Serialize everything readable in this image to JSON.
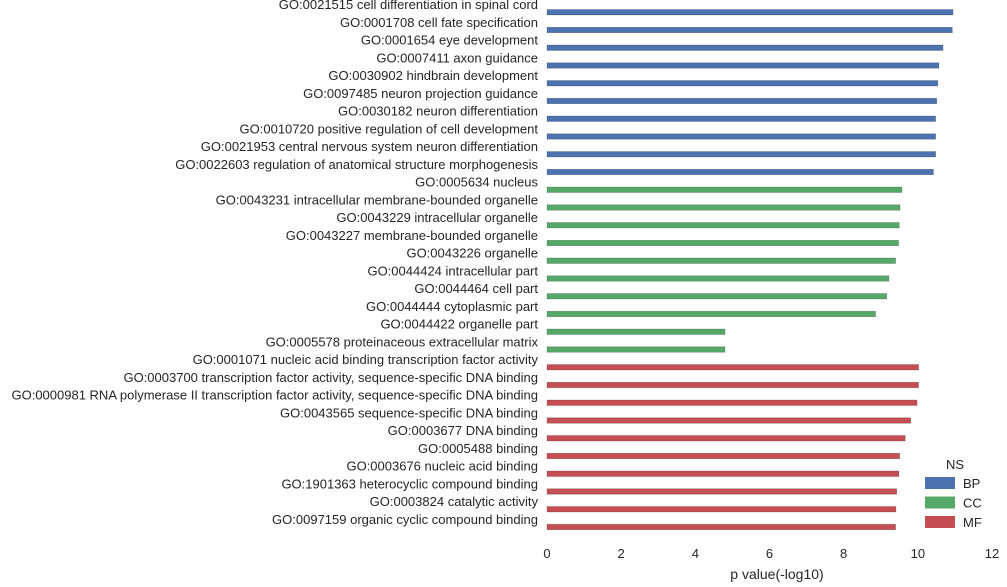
{
  "chart_data": {
    "type": "bar",
    "orientation": "horizontal",
    "categories": [
      "GO:0021515 cell differentiation in spinal cord",
      "GO:0001708 cell fate specification",
      "GO:0001654 eye development",
      "GO:0007411 axon guidance",
      "GO:0030902 hindbrain development",
      "GO:0097485 neuron projection guidance",
      "GO:0030182 neuron differentiation",
      "GO:0010720 positive regulation of cell development",
      "GO:0021953 central nervous system neuron differentiation",
      "GO:0022603 regulation of anatomical structure morphogenesis",
      "GO:0005634 nucleus",
      "GO:0043231 intracellular membrane-bounded organelle",
      "GO:0043229 intracellular organelle",
      "GO:0043227 membrane-bounded organelle",
      "GO:0043226 organelle",
      "GO:0044424 intracellular part",
      "GO:0044464 cell part",
      "GO:0044444 cytoplasmic part",
      "GO:0044422 organelle part",
      "GO:0005578 proteinaceous extracellular matrix",
      "GO:0001071 nucleic acid binding transcription factor activity",
      "GO:0003700 transcription factor activity, sequence-specific DNA binding",
      "GO:0000981 RNA polymerase II transcription factor activity, sequence-specific DNA binding",
      "GO:0043565 sequence-specific DNA binding",
      "GO:0003677 DNA binding",
      "GO:0005488 binding",
      "GO:0003676 nucleic acid binding",
      "GO:1901363 heterocyclic compound binding",
      "GO:0003824 catalytic activity",
      "GO:0097159 organic cyclic compound binding"
    ],
    "values": [
      10.95,
      10.93,
      10.68,
      10.57,
      10.54,
      10.51,
      10.48,
      10.48,
      10.48,
      10.42,
      9.57,
      9.52,
      9.5,
      9.48,
      9.4,
      9.22,
      9.16,
      8.86,
      4.8,
      4.8,
      10.02,
      10.02,
      9.98,
      9.81,
      9.66,
      9.51,
      9.49,
      9.43,
      9.41,
      9.4
    ],
    "groups": [
      "BP",
      "BP",
      "BP",
      "BP",
      "BP",
      "BP",
      "BP",
      "BP",
      "BP",
      "BP",
      "CC",
      "CC",
      "CC",
      "CC",
      "CC",
      "CC",
      "CC",
      "CC",
      "CC",
      "CC",
      "MF",
      "MF",
      "MF",
      "MF",
      "MF",
      "MF",
      "MF",
      "MF",
      "MF",
      "MF"
    ],
    "series": [
      {
        "name": "BP",
        "color": "#4c72b0"
      },
      {
        "name": "CC",
        "color": "#55a868"
      },
      {
        "name": "MF",
        "color": "#c44e52"
      }
    ],
    "legend_title": "NS",
    "legend_placement": "bottom-right",
    "xlabel": "p value(-log10)",
    "xlim": [
      0,
      12
    ],
    "xticks": [
      "0",
      "2",
      "4",
      "6",
      "8",
      "10",
      "12"
    ],
    "grid": false
  }
}
